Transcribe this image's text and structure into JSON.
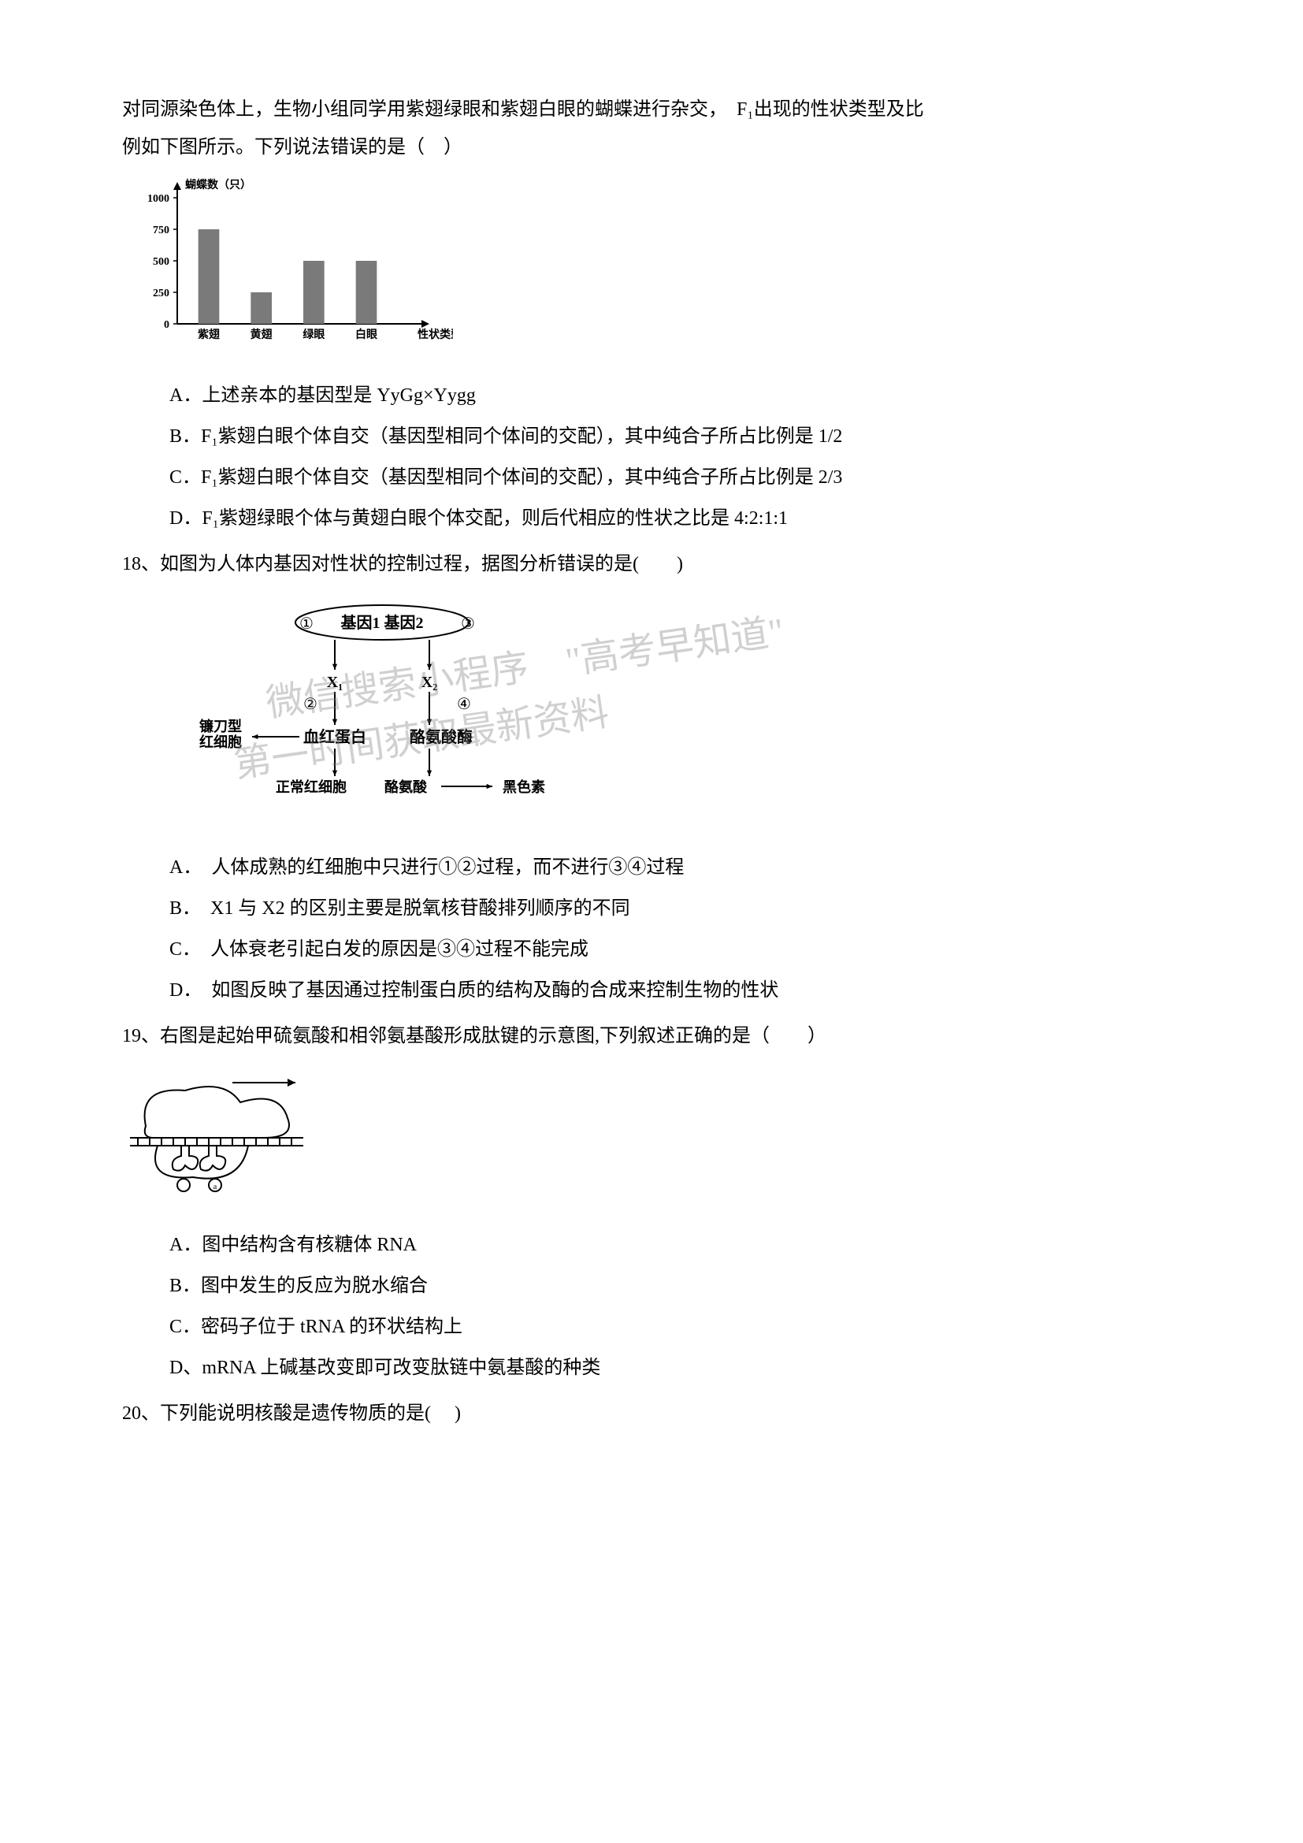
{
  "intro": {
    "line1": "对同源染色体上，生物小组同学用紫翅绿眼和紫翅白眼的蝴蝶进行杂交，　F₁出现的性状类型及比",
    "line2": "例如下图所示。下列说法错误的是（　）"
  },
  "q17_chart": {
    "y_label": "蝴蝶数（只）",
    "x_label": "性状类型",
    "y_ticks": [
      0,
      250,
      500,
      750,
      1000
    ],
    "categories": [
      "紫翅",
      "黄翅",
      "绿眼",
      "白眼"
    ],
    "values": [
      750,
      250,
      500,
      500
    ],
    "bar_color": "#7a7a7a",
    "axis_color": "#000000",
    "label_fontsize": 14,
    "bg": "#ffffff",
    "ylim": [
      0,
      1000
    ]
  },
  "q17_options": {
    "A": "A．上述亲本的基因型是 YyGg×Yygg",
    "B": "B．F₁紫翅白眼个体自交（基因型相同个体间的交配），其中纯合子所占比例是 1/2",
    "C": "C．F₁紫翅白眼个体自交（基因型相同个体间的交配），其中纯合子所占比例是 2/3",
    "D": "D．F₁紫翅绿眼个体与黄翅白眼个体交配，则后代相应的性状之比是 4:2:1:1"
  },
  "q18": {
    "stem": "18、如图为人体内基因对性状的控制过程，据图分析错误的是(　　)",
    "diagram": {
      "gene_box": "基因1 基因2",
      "labels": {
        "n1": "①",
        "n3": "③",
        "n2": "②",
        "n4": "④"
      },
      "x1": "X₁",
      "x2": "X₂",
      "left_product": "血红蛋白",
      "right_product": "酪氨酸酶",
      "left_cell1": "镰刀型\n红细胞",
      "left_cell2": "正常红细胞",
      "right_subst": "酪氨酸",
      "right_prod2": "黑色素",
      "box_color": "#000000"
    },
    "watermarks": {
      "w1": "微信搜索小程序　\"高考早知道\"",
      "w2": "第一时间获取最新资料"
    },
    "options": {
      "A": "A．　人体成熟的红细胞中只进行①②过程，而不进行③④过程",
      "B": "B．　X1 与 X2 的区别主要是脱氧核苷酸排列顺序的不同",
      "C": "C．　人体衰老引起白发的原因是③④过程不能完成",
      "D": "D．　如图反映了基因通过控制蛋白质的结构及酶的合成来控制生物的性状"
    }
  },
  "q19": {
    "stem": "19、右图是起始甲硫氨酸和相邻氨基酸形成肽键的示意图,下列叙述正确的是（　　）",
    "options": {
      "A": "A．图中结构含有核糖体 RNA",
      "B": "B．图中发生的反应为脱水缩合",
      "C": "C．密码子位于 tRNA 的环状结构上",
      "D": "D、mRNA 上碱基改变即可改变肽链中氨基酸的种类"
    }
  },
  "q20": {
    "stem": "20、下列能说明核酸是遗传物质的是(　 )"
  }
}
